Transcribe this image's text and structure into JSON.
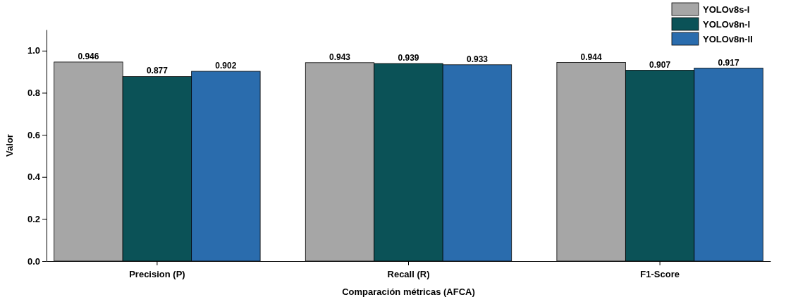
{
  "chart_data": {
    "type": "bar",
    "xlabel": "Comparación métricas (AFCA)",
    "ylabel": "Valor",
    "categories": [
      "Precision (P)",
      "Recall (R)",
      "F1-Score"
    ],
    "series": [
      {
        "name": "YOLOv8s-I",
        "color": "#a6a6a6",
        "values": [
          0.946,
          0.943,
          0.944
        ]
      },
      {
        "name": "YOLOv8n-I",
        "color": "#0b5257",
        "values": [
          0.877,
          0.939,
          0.907
        ]
      },
      {
        "name": "YOLOv8n-II",
        "color": "#2a6cad",
        "values": [
          0.902,
          0.933,
          0.917
        ]
      }
    ],
    "ylim": [
      0,
      1.1
    ],
    "yticks": [
      {
        "value": 0,
        "label": "0.0"
      },
      0.2,
      0.4,
      0.6,
      0.8,
      {
        "value": 1,
        "label": "1.0"
      }
    ],
    "data_labels": true,
    "legend": "top right",
    "grid": false
  }
}
